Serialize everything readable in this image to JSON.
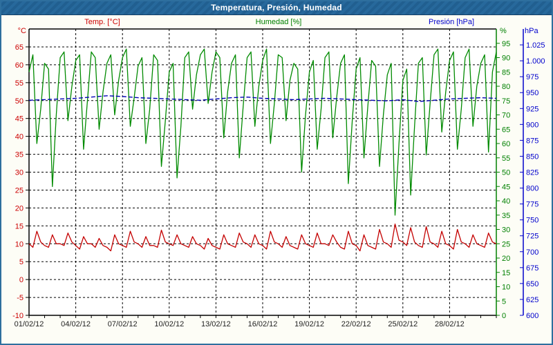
{
  "window": {
    "title": "Temperatura, Presión, Humedad"
  },
  "legend": {
    "temp_label": "Temp. [°C]",
    "humidity_label": "Humedad [%]",
    "pressure_label": "Presión [hPa]"
  },
  "colors": {
    "titlebar": "#27699c",
    "window_border": "#2e6f9e",
    "grid": "#000000",
    "temp_series": "#c40000",
    "humidity_series": "#008a00",
    "pressure_series": "#0000b4",
    "temp_axis": "#cc0000",
    "humidity_axis": "#008000",
    "pressure_axis": "#0000cc",
    "date_labels": "#222222"
  },
  "chart_data": {
    "type": "line",
    "title": "Temperatura, Presión, Humedad",
    "grid": true,
    "xlim_days": [
      0,
      30
    ],
    "x_label_step_days": 3,
    "x_minor_tick_days": 1,
    "x_tick_labels": [
      "01/02/12",
      "04/02/12",
      "07/02/12",
      "10/02/12",
      "13/02/12",
      "16/02/12",
      "19/02/12",
      "22/02/12",
      "25/02/12",
      "28/02/12"
    ],
    "axes": {
      "temp": {
        "unit": "°C",
        "min": -10,
        "max": 70,
        "tick_step": 5,
        "label_min": -10,
        "label_max": 65,
        "color": "#cc0000",
        "side": "left"
      },
      "humidity": {
        "unit": "%",
        "min": 0,
        "max": 100,
        "tick_step": 5,
        "label_min": 0,
        "label_max": 95,
        "color": "#008000",
        "side": "right"
      },
      "pressure": {
        "unit": "hPa",
        "min": 600,
        "max": 1050,
        "tick_step": 25,
        "label_min": 600,
        "label_max": 1025,
        "color": "#0000cc",
        "side": "far-right",
        "thousands_separator": "."
      }
    },
    "series": [
      {
        "name": "Humedad [%]",
        "axis": "humidity",
        "color": "#008a00",
        "width": 1.3,
        "x_start": 0,
        "x_step": 0.25,
        "values": [
          85,
          91,
          60,
          72,
          88,
          86,
          45,
          70,
          90,
          92,
          68,
          80,
          89,
          91,
          58,
          75,
          92,
          90,
          65,
          78,
          88,
          91,
          70,
          82,
          90,
          93,
          66,
          76,
          87,
          90,
          60,
          72,
          91,
          89,
          52,
          68,
          85,
          88,
          48,
          66,
          90,
          92,
          72,
          84,
          91,
          93,
          74,
          85,
          92,
          90,
          62,
          78,
          88,
          91,
          55,
          73,
          90,
          92,
          66,
          80,
          89,
          93,
          60,
          74,
          91,
          90,
          68,
          82,
          88,
          86,
          50,
          70,
          85,
          89,
          58,
          72,
          90,
          92,
          62,
          76,
          88,
          91,
          46,
          68,
          86,
          90,
          55,
          73,
          89,
          87,
          52,
          70,
          84,
          88,
          35,
          60,
          82,
          86,
          42,
          66,
          88,
          90,
          56,
          74,
          91,
          93,
          64,
          78,
          89,
          92,
          58,
          72,
          90,
          93,
          66,
          80,
          88,
          91,
          57,
          85,
          92
        ]
      },
      {
        "name": "Temp. [°C]",
        "axis": "temp",
        "color": "#c40000",
        "width": 1.3,
        "x_start": 0,
        "x_step": 0.25,
        "values": [
          10,
          9,
          13.5,
          10.5,
          9.5,
          9,
          12.5,
          10,
          10,
          9.5,
          13,
          10.5,
          9.5,
          8.5,
          12,
          10,
          10,
          9,
          11.5,
          9.5,
          9,
          8,
          12.5,
          10,
          9.5,
          9,
          13.5,
          10.5,
          10,
          9,
          12,
          9.5,
          9.5,
          9,
          13.8,
          10.5,
          10,
          9.5,
          12.5,
          10,
          9.5,
          9,
          12,
          10,
          9.5,
          8.5,
          11.5,
          9.5,
          9,
          8.5,
          12.5,
          10,
          9.5,
          9,
          13,
          10.5,
          10,
          9,
          12.5,
          10,
          9.5,
          8.5,
          13.5,
          10.5,
          10,
          9,
          12,
          9.5,
          9,
          8.5,
          12.5,
          10,
          9.5,
          9,
          13,
          10,
          10,
          9.5,
          12.5,
          10.5,
          9,
          8.5,
          13.5,
          10,
          9.5,
          8,
          12.5,
          9.5,
          9,
          8.5,
          14,
          10.5,
          10,
          9,
          15.5,
          11,
          10.5,
          9.5,
          14.5,
          10.5,
          9.5,
          9,
          14.8,
          10.5,
          10,
          9,
          13.5,
          10,
          9.5,
          8.5,
          14,
          10.5,
          10,
          9,
          12.5,
          10,
          9.5,
          9,
          13,
          10.5,
          10
        ]
      },
      {
        "name": "Presión [hPa]",
        "axis": "pressure",
        "color": "#0000b4",
        "width": 1.4,
        "dash": "6 3",
        "x_start": 0,
        "x_step": 1,
        "values": [
          938,
          939,
          940,
          941,
          943,
          945,
          944,
          942,
          941,
          940,
          939,
          938,
          940,
          942,
          943,
          941,
          940,
          939,
          940,
          941,
          940,
          939,
          938,
          937,
          939,
          936,
          938,
          940,
          941,
          942,
          941
        ]
      }
    ]
  }
}
